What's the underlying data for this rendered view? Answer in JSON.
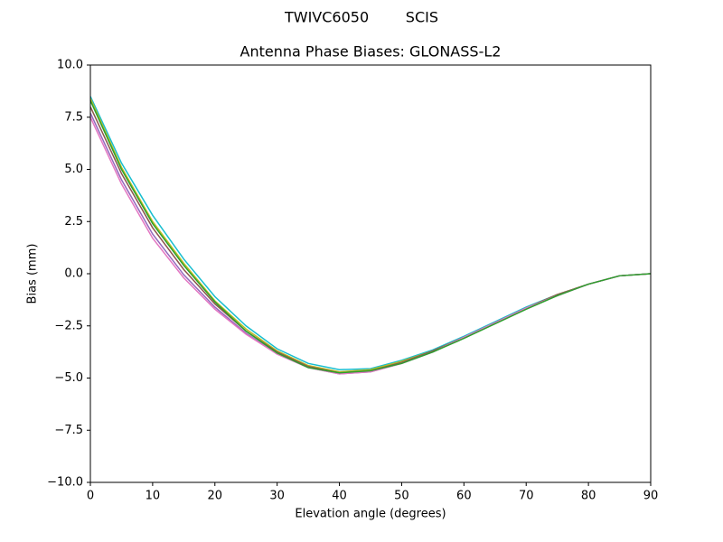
{
  "chart_data": {
    "type": "line",
    "suptitle": "TWIVC6050        SCIS",
    "title": "Antenna Phase Biases: GLONASS-L2",
    "x_label": "Elevation angle (degrees)",
    "y_label": "Bias (mm)",
    "x": [
      0,
      5,
      10,
      15,
      20,
      25,
      30,
      35,
      40,
      45,
      50,
      55,
      60,
      65,
      70,
      75,
      80,
      85,
      90
    ],
    "series": [
      {
        "color": "#17becf",
        "values": [
          8.5,
          5.3,
          2.8,
          0.7,
          -1.1,
          -2.5,
          -3.6,
          -4.3,
          -4.6,
          -4.55,
          -4.15,
          -3.65,
          -3.0,
          -2.3,
          -1.6,
          -1.0,
          -0.5,
          -0.1,
          0.0
        ]
      },
      {
        "color": "#bcbd22",
        "values": [
          8.4,
          5.1,
          2.5,
          0.5,
          -1.3,
          -2.65,
          -3.7,
          -4.4,
          -4.7,
          -4.6,
          -4.2,
          -3.7,
          -3.05,
          -2.35,
          -1.65,
          -1.0,
          -0.5,
          -0.1,
          0.0
        ]
      },
      {
        "color": "#8c564b",
        "values": [
          8.0,
          4.8,
          2.2,
          0.2,
          -1.45,
          -2.75,
          -3.75,
          -4.45,
          -4.75,
          -4.65,
          -4.25,
          -3.7,
          -3.05,
          -2.35,
          -1.65,
          -1.0,
          -0.5,
          -0.1,
          0.0
        ]
      },
      {
        "color": "#9467bd",
        "values": [
          7.7,
          4.5,
          1.9,
          -0.05,
          -1.6,
          -2.85,
          -3.85,
          -4.5,
          -4.8,
          -4.7,
          -4.3,
          -3.75,
          -3.05,
          -2.35,
          -1.65,
          -1.05,
          -0.5,
          -0.1,
          0.0
        ]
      },
      {
        "color": "#e377c2",
        "values": [
          7.5,
          4.3,
          1.7,
          -0.2,
          -1.7,
          -2.9,
          -3.85,
          -4.5,
          -4.8,
          -4.7,
          -4.3,
          -3.75,
          -3.05,
          -2.35,
          -1.65,
          -1.05,
          -0.5,
          -0.1,
          0.0
        ]
      },
      {
        "color": "#2ca02c",
        "values": [
          8.3,
          5.0,
          2.4,
          0.4,
          -1.35,
          -2.75,
          -3.8,
          -4.5,
          -4.75,
          -4.65,
          -4.3,
          -3.75,
          -3.1,
          -2.4,
          -1.7,
          -1.05,
          -0.5,
          -0.1,
          0.0
        ]
      }
    ],
    "xlim": [
      0,
      90
    ],
    "xticks": [
      0,
      10,
      20,
      30,
      40,
      50,
      60,
      70,
      80,
      90
    ],
    "ylim": [
      -10,
      10
    ],
    "yticks": [
      {
        "value": -10,
        "label": "−10.0"
      },
      {
        "value": -7.5,
        "label": "−7.5"
      },
      {
        "value": -5,
        "label": "−5.0"
      },
      {
        "value": -2.5,
        "label": "−2.5"
      },
      {
        "value": 0,
        "label": "0.0"
      },
      2.5,
      {
        "value": 5,
        "label": "5.0"
      },
      7.5,
      {
        "value": 10,
        "label": "10.0"
      }
    ],
    "grid": false
  }
}
